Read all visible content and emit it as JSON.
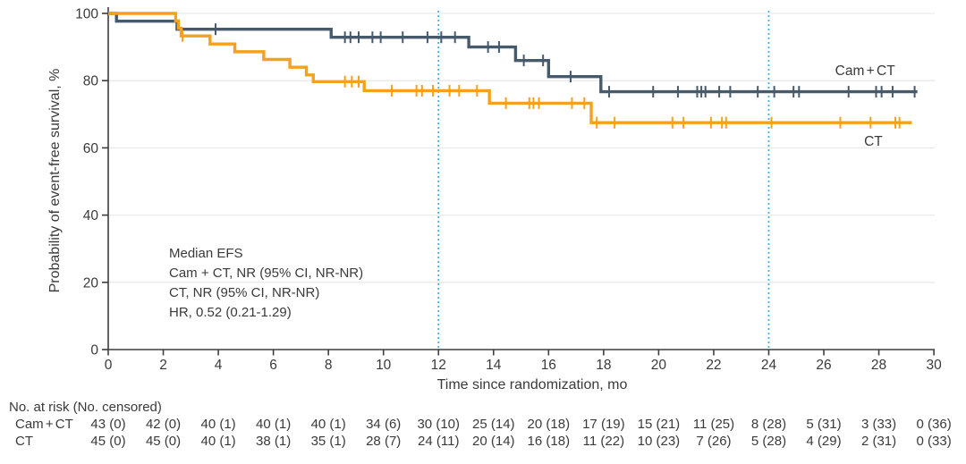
{
  "colors": {
    "cam_ct": "#465a6b",
    "ct": "#f2a21b",
    "reference_line": "#3db5e6",
    "axis": "#3d3d3d",
    "text": "#3a3a3a",
    "grid": "#eaeaea"
  },
  "chart_data": {
    "type": "line",
    "variant": "kaplan-meier-step",
    "title": "",
    "xlabel": "Time since randomization, mo",
    "ylabel": "Probability of event-free survival, %",
    "xlim": [
      0,
      30
    ],
    "ylim": [
      0,
      100
    ],
    "xticks": [
      0,
      2,
      4,
      6,
      8,
      10,
      12,
      14,
      16,
      18,
      20,
      22,
      24,
      26,
      28,
      30
    ],
    "yticks": [
      0,
      20,
      40,
      60,
      80,
      100
    ],
    "grid": "horizontal-light",
    "legend_position": "labels-on-chart",
    "reference_lines": {
      "x": [
        12,
        24
      ],
      "style": "dotted",
      "color": "#3db5e6"
    },
    "series": [
      {
        "name": "Cam + CT",
        "color": "#465a6b",
        "label_pos": {
          "t": 27.5,
          "p": 81.6
        },
        "steps": [
          [
            0,
            100
          ],
          [
            0.3,
            97.7
          ],
          [
            2.5,
            95.3
          ],
          [
            8.1,
            92.9
          ],
          [
            13.1,
            90.0
          ],
          [
            14.8,
            86.0
          ],
          [
            16.0,
            81.2
          ],
          [
            17.9,
            76.7
          ],
          [
            29.4,
            76.7
          ]
        ],
        "censor_times": [
          3.9,
          8.6,
          8.8,
          9.1,
          9.6,
          9.9,
          10.7,
          11.6,
          12.1,
          12.6,
          13.8,
          14.2,
          15.1,
          15.8,
          16.8,
          18.2,
          19.8,
          20.7,
          21.4,
          21.55,
          21.7,
          22.2,
          22.6,
          23.6,
          24.2,
          24.9,
          25.1,
          26.9,
          27.9,
          28.1,
          28.5,
          29.3
        ]
      },
      {
        "name": "CT",
        "color": "#f2a21b",
        "label_pos": {
          "t": 27.8,
          "p": 60.6
        },
        "steps": [
          [
            0,
            100
          ],
          [
            2.45,
            97.8
          ],
          [
            2.55,
            95.6
          ],
          [
            2.65,
            93.3
          ],
          [
            3.7,
            90.9
          ],
          [
            4.6,
            88.6
          ],
          [
            5.65,
            86.3
          ],
          [
            6.6,
            84.0
          ],
          [
            7.2,
            81.7
          ],
          [
            7.45,
            79.7
          ],
          [
            9.3,
            77.0
          ],
          [
            13.85,
            73.3
          ],
          [
            17.55,
            67.5
          ],
          [
            29.2,
            67.5
          ]
        ],
        "censor_times": [
          2.7,
          8.6,
          8.85,
          9.1,
          10.3,
          11.2,
          11.4,
          11.8,
          12.4,
          12.75,
          13.4,
          14.45,
          15.3,
          15.45,
          15.65,
          16.85,
          17.3,
          17.75,
          18.4,
          20.5,
          20.9,
          21.9,
          22.3,
          22.45,
          24.1,
          26.6,
          27.7,
          28.6,
          28.75
        ]
      }
    ],
    "annotation": {
      "lines": [
        "Median EFS",
        "Cam + CT, NR (95% CI, NR-NR)",
        "CT, NR (95% CI, NR-NR)",
        "HR, 0.52 (0.21-1.29)"
      ]
    },
    "risk_table": {
      "title": "No. at risk (No. censored)",
      "times": [
        0,
        2,
        4,
        6,
        8,
        10,
        12,
        14,
        16,
        18,
        20,
        22,
        24,
        26,
        28,
        30
      ],
      "rows": [
        {
          "label": "Cam + CT",
          "values": [
            "43 (0)",
            "42 (0)",
            "40 (1)",
            "40 (1)",
            "40 (1)",
            "34 (6)",
            "30 (10)",
            "25 (14)",
            "20 (18)",
            "17 (19)",
            "15 (21)",
            "11 (25)",
            "8 (28)",
            "5 (31)",
            "3 (33)",
            "0 (36)"
          ]
        },
        {
          "label": "CT",
          "values": [
            "45 (0)",
            "45 (0)",
            "40 (1)",
            "38 (1)",
            "35 (1)",
            "28 (7)",
            "24 (11)",
            "20 (14)",
            "16 (18)",
            "11 (22)",
            "10 (23)",
            "7 (26)",
            "5 (28)",
            "4 (29)",
            "2 (31)",
            "0 (33)"
          ]
        }
      ]
    }
  }
}
